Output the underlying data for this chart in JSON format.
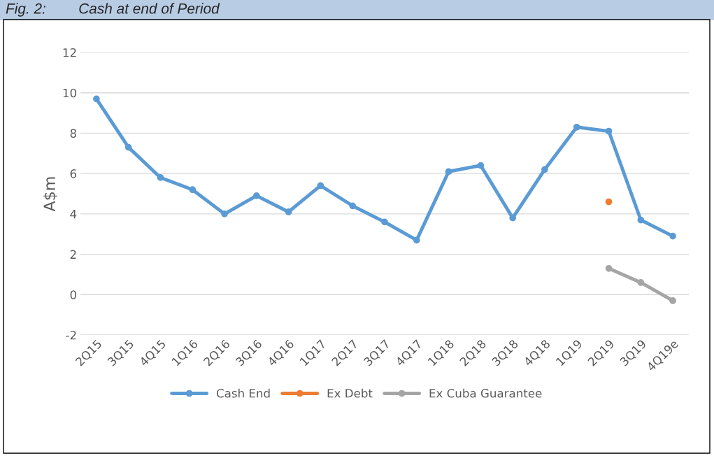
{
  "chart_data": {
    "type": "line",
    "title": "Fig. 2:        Cash at end of Period",
    "ylabel": "A$m",
    "categories": [
      "2Q15",
      "3Q15",
      "4Q15",
      "1Q16",
      "2Q16",
      "3Q16",
      "4Q16",
      "1Q17",
      "2Q17",
      "3Q17",
      "4Q17",
      "1Q18",
      "2Q18",
      "3Q18",
      "4Q18",
      "1Q19",
      "2Q19",
      "3Q19",
      "4Q19e"
    ],
    "series": [
      {
        "name": "Cash End",
        "color": "#5b9bd5",
        "values": [
          9.7,
          7.3,
          5.8,
          5.2,
          4.0,
          4.9,
          4.1,
          5.4,
          4.4,
          3.6,
          2.7,
          6.1,
          6.4,
          3.8,
          6.2,
          8.3,
          8.1,
          3.7,
          2.9
        ]
      },
      {
        "name": "Ex Debt",
        "color": "#ed7d31",
        "values": [
          null,
          null,
          null,
          null,
          null,
          null,
          null,
          null,
          null,
          null,
          null,
          null,
          null,
          null,
          null,
          null,
          4.6,
          null,
          null
        ]
      },
      {
        "name": "Ex Cuba Guarantee",
        "color": "#a5a5a5",
        "values": [
          null,
          null,
          null,
          null,
          null,
          null,
          null,
          null,
          null,
          null,
          null,
          null,
          null,
          null,
          null,
          null,
          1.3,
          0.6,
          -0.3
        ]
      }
    ],
    "ylim": [
      -2,
      12
    ],
    "yticks": [
      -2,
      0,
      2,
      4,
      6,
      8,
      10,
      12
    ],
    "grid": "y",
    "legend": "bottom",
    "marker": "circle",
    "line_style": "solid"
  }
}
